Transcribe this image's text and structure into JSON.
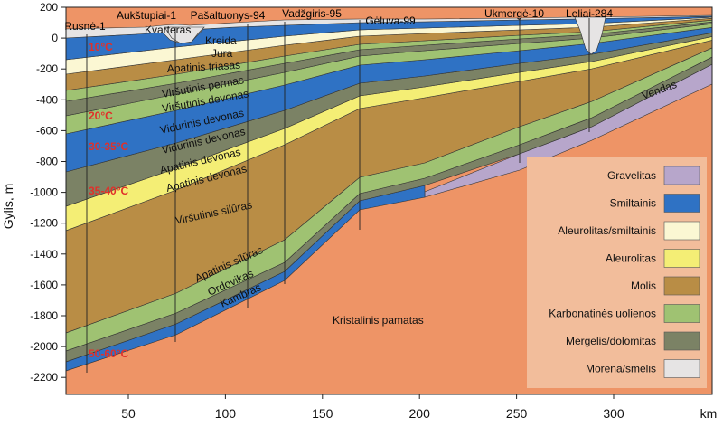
{
  "axes": {
    "ylabel": "Gylis, m",
    "x_unit": "km",
    "x_ticks": [
      "50",
      "100",
      "150",
      "200",
      "250",
      "300"
    ],
    "y_ticks": [
      "200",
      "0",
      "-200",
      "-400",
      "-600",
      "-800",
      "-1000",
      "-1200",
      "-1400",
      "-1600",
      "-1800",
      "-2000",
      "-2200"
    ]
  },
  "wells": [
    {
      "name": "Rusnė-1"
    },
    {
      "name": "Aukštupiai-1"
    },
    {
      "name": "Pašaltuonys-94"
    },
    {
      "name": "Vadžgiris-95"
    },
    {
      "name": "Gėluva-99"
    },
    {
      "name": "Ukmergė-10"
    },
    {
      "name": "Leliai-284"
    }
  ],
  "layer_labels": [
    "Kvarteras",
    "Kreida",
    "Jura",
    "Apatinis triasas",
    "Viršutinis permas",
    "Viršutinis devonas",
    "Vidurinis devonas",
    "Vidurinis devonas",
    "Apatinis devonas",
    "Apatinis devonas",
    "Viršutinis silūras",
    "Apatinis silūras",
    "Ordovikas",
    "Kambras",
    "Vendas",
    "Kristalinis pamatas"
  ],
  "temperatures": [
    "10°C",
    "20°C",
    "30-35°C",
    "35-40°C",
    "50-60°C"
  ],
  "legend": {
    "items": [
      {
        "label": "Gravelitas",
        "color": "#b7a6cb"
      },
      {
        "label": "Smiltainis",
        "color": "#2f72c4"
      },
      {
        "label": "Aleurolitas/smiltainis",
        "color": "#fbf7d3"
      },
      {
        "label": "Aleurolitas",
        "color": "#f4ee75"
      },
      {
        "label": "Molis",
        "color": "#b98d45"
      },
      {
        "label": "Karbonatinės uolienos",
        "color": "#9fc272"
      },
      {
        "label": "Mergelis/dolomitas",
        "color": "#7b8265"
      },
      {
        "label": "Morena/smėlis",
        "color": "#e6e4e4"
      }
    ]
  },
  "colors": {
    "basement": "#ee9466",
    "legend_bg": "#f2bd9b"
  }
}
